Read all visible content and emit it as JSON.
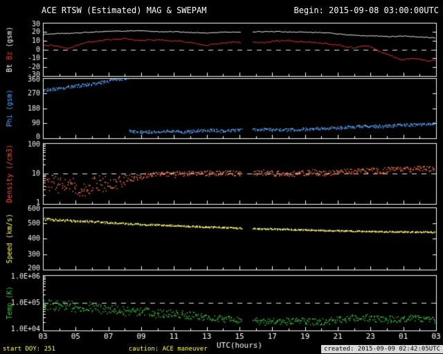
{
  "header": {
    "title": "ACE RTSW (Estimated) MAG & SWEPAM",
    "begin": "Begin: 2015-09-08 03:00:00UTC"
  },
  "footer": {
    "start_doy": "start DOY: 251",
    "caution": "caution: ACE maneuver",
    "created": "created: 2015-09-09 02:42:05UTC"
  },
  "colors": {
    "background": "#000000",
    "frame": "#ffffff",
    "bt": "#f8f8f8",
    "bz": "#ff3333",
    "phi": "#55aaff",
    "density": "#ff6633",
    "speed": "#ffff44",
    "temp": "#33cc33",
    "footer_text": "#ffff00",
    "created_box": "#d9d9d9"
  },
  "x_axis": {
    "label": "UTC(hours)",
    "range": [
      3,
      27
    ],
    "ticks": [
      3,
      5,
      7,
      9,
      11,
      13,
      15,
      17,
      19,
      21,
      23,
      25,
      27
    ],
    "tick_labels": [
      "03",
      "05",
      "07",
      "09",
      "11",
      "13",
      "15",
      "17",
      "19",
      "21",
      "23",
      "01",
      "03"
    ],
    "minor_step": 1,
    "data_gap": [
      15.15,
      15.8
    ],
    "sample_hours": [
      3,
      3.5,
      4,
      4.5,
      5,
      5.5,
      6,
      6.5,
      7,
      7.5,
      8,
      8.5,
      9,
      9.5,
      10,
      10.5,
      11,
      11.5,
      12,
      12.5,
      13,
      13.5,
      14,
      14.5,
      15,
      15.5,
      16,
      16.5,
      17,
      17.5,
      18,
      18.5,
      19,
      19.5,
      20,
      20.5,
      21,
      21.5,
      22,
      22.5,
      23,
      23.5,
      24,
      24.5,
      25,
      25.5,
      26,
      26.5,
      27
    ]
  },
  "chart_data": [
    {
      "type": "line",
      "name": "mag",
      "ylabel_parts": [
        {
          "text": "Bt ",
          "color": "#ffffff"
        },
        {
          "text": "Bz ",
          "color": "#ff3333"
        },
        {
          "text": "(gsm)",
          "color": "#ffffff"
        }
      ],
      "scale": "linear",
      "ylim": [
        -30,
        30
      ],
      "yticks": [
        -30,
        -20,
        -10,
        0,
        10,
        20,
        30
      ],
      "ytick_labels": [
        "-30",
        "-20",
        "-10",
        "0",
        "10",
        "20",
        "30"
      ],
      "dashed_y": 0,
      "series": [
        {
          "name": "Bt",
          "color": "#f8f8f8",
          "style": "line",
          "jitter": 0.4,
          "y": [
            17,
            17.5,
            18,
            18,
            18.5,
            19,
            19.5,
            20,
            20.5,
            20.5,
            20.5,
            21,
            21,
            20.5,
            20,
            20,
            20,
            19.5,
            19,
            19,
            18.5,
            19,
            19.5,
            19.5,
            19.5,
            19.5,
            20,
            20,
            20,
            20,
            19.5,
            19.5,
            19.5,
            19,
            19,
            18.5,
            17.5,
            16.5,
            16,
            15.5,
            15.5,
            15,
            14.5,
            14.5,
            15,
            14.5,
            14,
            13.5,
            13
          ]
        },
        {
          "name": "Bz",
          "color": "#ff3333",
          "style": "line",
          "jitter": 0.8,
          "y": [
            4,
            5,
            3,
            1,
            4,
            7,
            9,
            10,
            11,
            12,
            12,
            11,
            10,
            11,
            11,
            10,
            10,
            9,
            8,
            6,
            5,
            6,
            7,
            8,
            8,
            8,
            8,
            8,
            9,
            10,
            10,
            9,
            9,
            8,
            7,
            6,
            5,
            3,
            2,
            4,
            3,
            -2,
            -5,
            -9,
            -12,
            -10,
            -11,
            -13,
            -12
          ]
        }
      ]
    },
    {
      "type": "scatter",
      "name": "phi",
      "ylabel_parts": [
        {
          "text": "Phi (gsm)",
          "color": "#55aaff"
        }
      ],
      "scale": "linear",
      "ylim": [
        0,
        360
      ],
      "yticks": [
        0,
        90,
        180,
        270,
        360
      ],
      "ytick_labels": [
        "0",
        "90",
        "180",
        "270",
        "360"
      ],
      "dashed_y": null,
      "series": [
        {
          "name": "Phi",
          "color": "#55aaff",
          "style": "scatter",
          "jitter": 9,
          "jump": 150,
          "y": [
            285,
            292,
            298,
            305,
            312,
            318,
            325,
            333,
            342,
            352,
            358,
            40,
            35,
            38,
            40,
            42,
            40,
            38,
            40,
            45,
            48,
            45,
            42,
            45,
            48,
            50,
            50,
            52,
            50,
            48,
            50,
            52,
            55,
            55,
            58,
            60,
            62,
            65,
            68,
            70,
            72,
            70,
            72,
            75,
            78,
            80,
            82,
            85,
            85
          ]
        }
      ]
    },
    {
      "type": "scatter",
      "name": "density",
      "ylabel_parts": [
        {
          "text": "Density (/cm3)",
          "color": "#ff5533"
        }
      ],
      "scale": "log",
      "ylim": [
        1,
        100
      ],
      "yticks": [
        1,
        10,
        100
      ],
      "ytick_labels": [
        "1",
        "10",
        "100"
      ],
      "dashed_y": 10,
      "series": [
        {
          "name": "Density",
          "color": "#ff7744",
          "style": "scatter",
          "jitter_profile": {
            "x": [
              3,
              7.5,
              8.5,
              27
            ],
            "v": [
              0.3,
              0.26,
              0.09,
              0.09
            ]
          },
          "y": [
            6,
            5,
            4,
            5,
            4,
            3,
            4,
            5,
            4,
            5,
            6,
            7,
            8,
            9,
            10,
            10,
            9,
            10,
            10,
            11,
            10,
            10,
            11,
            10,
            10,
            10,
            10,
            11,
            10,
            10,
            9,
            10,
            10,
            11,
            10,
            10,
            11,
            12,
            11,
            12,
            13,
            12,
            13,
            14,
            13,
            14,
            15,
            14,
            14
          ]
        }
      ]
    },
    {
      "type": "scatter",
      "name": "speed",
      "ylabel_parts": [
        {
          "text": "Speed (km/s)",
          "color": "#ffff44"
        }
      ],
      "scale": "linear",
      "ylim": [
        200,
        600
      ],
      "yticks": [
        200,
        300,
        400,
        500,
        600
      ],
      "ytick_labels": [
        "200",
        "300",
        "400",
        "500",
        "600"
      ],
      "dashed_y": null,
      "series": [
        {
          "name": "Speed",
          "color": "#ffff66",
          "style": "scatter",
          "jitter_profile": {
            "x": [
              3,
              10,
              27
            ],
            "v": [
              8,
              5,
              4
            ]
          },
          "y": [
            525,
            520,
            518,
            515,
            512,
            510,
            508,
            505,
            500,
            498,
            495,
            492,
            490,
            488,
            487,
            485,
            483,
            480,
            478,
            476,
            474,
            472,
            470,
            468,
            466,
            465,
            463,
            461,
            460,
            459,
            458,
            456,
            455,
            454,
            452,
            450,
            449,
            448,
            447,
            446,
            445,
            444,
            444,
            443,
            443,
            442,
            442,
            441,
            441
          ]
        }
      ]
    },
    {
      "type": "scatter",
      "name": "temp",
      "ylabel_parts": [
        {
          "text": "Temp (K)",
          "color": "#33cc33"
        }
      ],
      "scale": "log",
      "ylim": [
        10000,
        1000000
      ],
      "yticks": [
        10000,
        100000,
        1000000
      ],
      "ytick_labels": [
        "1.0E+04",
        "1.0E+05",
        "1.0E+06"
      ],
      "dashed_y": 100000,
      "series": [
        {
          "name": "Temp",
          "color": "#33cc33",
          "style": "scatter",
          "jitter_profile": {
            "x": [
              3,
              10,
              14,
              27
            ],
            "v": [
              0.2,
              0.16,
              0.12,
              0.12
            ]
          },
          "y": [
            90000,
            80000,
            75000,
            80000,
            70000,
            65000,
            70000,
            60000,
            55000,
            60000,
            50000,
            45000,
            50000,
            45000,
            40000,
            42000,
            40000,
            38000,
            35000,
            32000,
            30000,
            28000,
            26000,
            25000,
            24000,
            23000,
            22000,
            20000,
            21000,
            20000,
            22000,
            24000,
            22000,
            20000,
            21000,
            22000,
            24000,
            26000,
            28000,
            30000,
            28000,
            26000,
            25000,
            26000,
            27000,
            28000,
            26000,
            25000,
            25000
          ]
        }
      ]
    }
  ]
}
